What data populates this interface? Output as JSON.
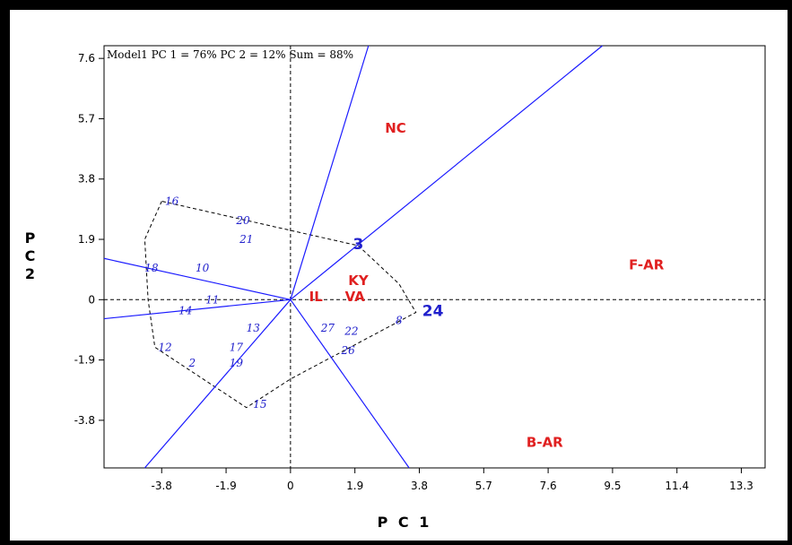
{
  "chart_data": {
    "type": "scatter",
    "title": "Model1 PC 1 = 76% PC 2 = 12% Sum = 88%",
    "xlabel": "P C 1",
    "ylabel_lines": [
      "P",
      "C",
      "2"
    ],
    "xlim": [
      -5.5,
      14.0
    ],
    "ylim": [
      -5.3,
      8.0
    ],
    "x_ticks": [
      -3.8,
      -1.9,
      0,
      1.9,
      3.8,
      5.7,
      7.6,
      9.5,
      11.4,
      13.3
    ],
    "x_tick_labels": [
      "-3.8",
      "-1.9",
      "0",
      "1.9",
      "3.8",
      "5.7",
      "7.6",
      "9.5",
      "11.4",
      "13.3"
    ],
    "y_ticks": [
      7.6,
      5.7,
      3.8,
      1.9,
      0,
      -1.9,
      -3.8
    ],
    "y_tick_labels": [
      "7.6",
      "5.7",
      "3.8",
      "1.9",
      "0",
      "-1.9",
      "-3.8"
    ],
    "environments": [
      {
        "label": "NC",
        "x": 3.1,
        "y": 5.4
      },
      {
        "label": "KY",
        "x": 2.0,
        "y": 0.6
      },
      {
        "label": "IL",
        "x": 0.75,
        "y": 0.1
      },
      {
        "label": "VA",
        "x": 1.9,
        "y": 0.1
      },
      {
        "label": "F-AR",
        "x": 10.5,
        "y": 1.1
      },
      {
        "label": "B-AR",
        "x": 7.5,
        "y": -4.5
      }
    ],
    "genotypes": [
      {
        "label": "16",
        "x": -3.5,
        "y": 3.1
      },
      {
        "label": "20",
        "x": -1.4,
        "y": 2.5
      },
      {
        "label": "21",
        "x": -1.3,
        "y": 1.9
      },
      {
        "label": "3",
        "x": 2.0,
        "y": 1.7
      },
      {
        "label": "18",
        "x": -4.1,
        "y": 1.0
      },
      {
        "label": "10",
        "x": -2.6,
        "y": 1.0
      },
      {
        "label": "11",
        "x": -2.3,
        "y": 0.0
      },
      {
        "label": "14",
        "x": -3.1,
        "y": -0.35
      },
      {
        "label": "24",
        "x": 4.2,
        "y": -0.4
      },
      {
        "label": "8",
        "x": 3.2,
        "y": -0.65
      },
      {
        "label": "13",
        "x": -1.1,
        "y": -0.9
      },
      {
        "label": "27",
        "x": 1.1,
        "y": -0.9
      },
      {
        "label": "22",
        "x": 1.8,
        "y": -1.0
      },
      {
        "label": "12",
        "x": -3.7,
        "y": -1.5
      },
      {
        "label": "17",
        "x": -1.6,
        "y": -1.5
      },
      {
        "label": "26",
        "x": 1.7,
        "y": -1.6
      },
      {
        "label": "2",
        "x": -2.9,
        "y": -2.0
      },
      {
        "label": "19",
        "x": -1.6,
        "y": -2.0
      },
      {
        "label": "15",
        "x": -0.9,
        "y": -3.3
      }
    ],
    "hull_labels": [
      "16",
      "3",
      "24",
      "15",
      "12",
      "18"
    ],
    "hull_vertices": [
      [
        -3.8,
        3.1
      ],
      [
        -4.3,
        1.9
      ],
      [
        -4.2,
        0.0
      ],
      [
        -4.0,
        -1.5
      ],
      [
        -1.3,
        -3.4
      ],
      [
        0,
        -2.5
      ],
      [
        3.7,
        -0.4
      ],
      [
        3.2,
        0.5
      ],
      [
        2.0,
        1.7
      ],
      [
        -3.8,
        3.1
      ]
    ],
    "rays": [
      {
        "from": [
          0,
          0
        ],
        "to": [
          2.3,
          8.0
        ]
      },
      {
        "from": [
          0,
          0
        ],
        "to": [
          9.2,
          8.0
        ]
      },
      {
        "from": [
          0,
          0
        ],
        "to": [
          -5.5,
          1.3
        ]
      },
      {
        "from": [
          0,
          0
        ],
        "to": [
          -5.5,
          -0.6
        ]
      },
      {
        "from": [
          0,
          0
        ],
        "to": [
          -4.3,
          -5.3
        ]
      },
      {
        "from": [
          0,
          0
        ],
        "to": [
          3.5,
          -5.3
        ]
      }
    ],
    "colors": {
      "line": "#1a1aff",
      "genotype": "#2020cc",
      "environment": "#e02020",
      "axis": "#000000"
    },
    "grid": false,
    "legend": "none"
  }
}
